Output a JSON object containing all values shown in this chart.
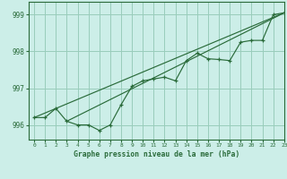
{
  "title": "Graphe pression niveau de la mer (hPa)",
  "background_color": "#cceee8",
  "grid_color": "#99ccbb",
  "line_color": "#2a6b3a",
  "marker_color": "#2a6b3a",
  "xlim": [
    -0.5,
    23
  ],
  "ylim": [
    995.6,
    999.35
  ],
  "yticks": [
    996,
    997,
    998,
    999
  ],
  "xticks": [
    0,
    1,
    2,
    3,
    4,
    5,
    6,
    7,
    8,
    9,
    10,
    11,
    12,
    13,
    14,
    15,
    16,
    17,
    18,
    19,
    20,
    21,
    22,
    23
  ],
  "series1_x": [
    0,
    1,
    2,
    3,
    4,
    5,
    6,
    7,
    8,
    9,
    10,
    11,
    12,
    13,
    14,
    15,
    16,
    17,
    18,
    19,
    20,
    21,
    22,
    23
  ],
  "series1_y": [
    996.2,
    996.2,
    996.45,
    996.1,
    996.0,
    996.0,
    995.85,
    996.0,
    996.55,
    997.05,
    997.2,
    997.25,
    997.3,
    997.2,
    997.75,
    997.95,
    997.8,
    997.78,
    997.75,
    998.25,
    998.3,
    998.3,
    999.0,
    999.05
  ],
  "trend_line1": [
    [
      0,
      996.2
    ],
    [
      23,
      999.05
    ]
  ],
  "trend_line2": [
    [
      3,
      996.1
    ],
    [
      23,
      999.05
    ]
  ]
}
